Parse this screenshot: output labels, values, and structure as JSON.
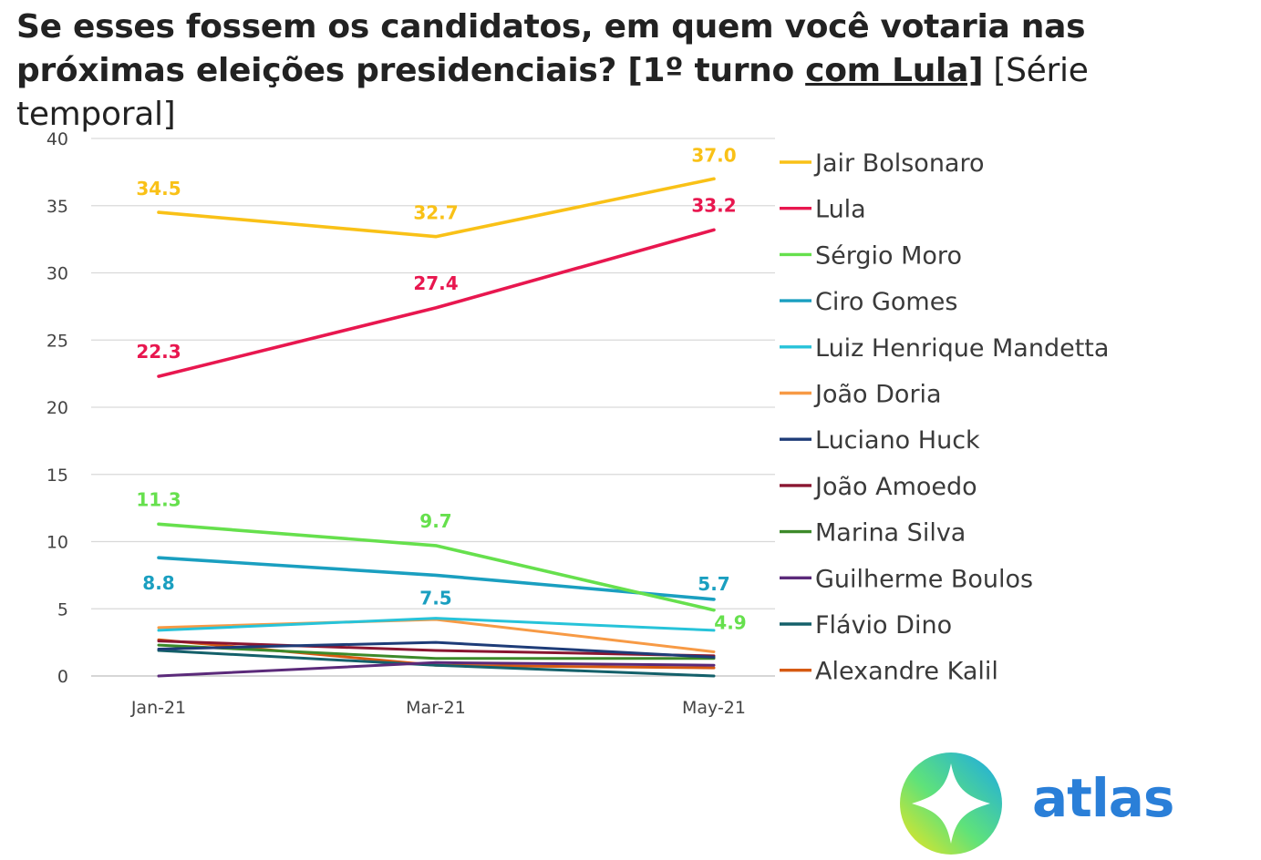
{
  "title": {
    "part1": "Se esses fossem os candidatos, em quem você votaria nas próximas eleições presidenciais? [1º turno ",
    "part2": "com Lula]",
    "part3": " [Série temporal]"
  },
  "logo": {
    "text": "atlas",
    "icon": "atlas-compass-logo-icon"
  },
  "chart_data": {
    "type": "line",
    "x": [
      "Jan-21",
      "Mar-21",
      "May-21"
    ],
    "ylim": [
      0,
      40
    ],
    "yticks": [
      0,
      5,
      10,
      15,
      20,
      25,
      30,
      35,
      40
    ],
    "grid": true,
    "legend_position": "right",
    "series": [
      {
        "name": "Jair Bolsonaro",
        "color": "#f9c117",
        "values": [
          34.5,
          32.7,
          37.0
        ],
        "labels": [
          "34.5",
          "32.7",
          "37.0"
        ]
      },
      {
        "name": "Lula",
        "color": "#e8174f",
        "values": [
          22.3,
          27.4,
          33.2
        ],
        "labels": [
          "22.3",
          "27.4",
          "33.2"
        ]
      },
      {
        "name": "Sérgio Moro",
        "color": "#66e04d",
        "values": [
          11.3,
          9.7,
          4.9
        ],
        "labels": [
          "11.3",
          "9.7",
          "4.9"
        ]
      },
      {
        "name": "Ciro Gomes",
        "color": "#1a9fc0",
        "values": [
          8.8,
          7.5,
          5.7
        ],
        "labels": [
          "8.8",
          "7.5",
          "5.7"
        ]
      },
      {
        "name": "Luiz Henrique Mandetta",
        "color": "#27c3d9",
        "values": [
          3.4,
          4.3,
          3.4
        ],
        "labels": []
      },
      {
        "name": "João Doria",
        "color": "#f79a45",
        "values": [
          3.6,
          4.2,
          1.8
        ],
        "labels": []
      },
      {
        "name": "Luciano Huck",
        "color": "#1e3c78",
        "values": [
          2.0,
          2.5,
          1.4
        ],
        "labels": []
      },
      {
        "name": "João Amoedo",
        "color": "#8a1631",
        "values": [
          2.6,
          1.9,
          1.5
        ],
        "labels": []
      },
      {
        "name": "Marina Silva",
        "color": "#3d8a2a",
        "values": [
          2.3,
          1.3,
          1.3
        ],
        "labels": []
      },
      {
        "name": "Guilherme Boulos",
        "color": "#5b2a7a",
        "values": [
          0.0,
          1.0,
          0.8
        ],
        "labels": []
      },
      {
        "name": "Flávio Dino",
        "color": "#14606a",
        "values": [
          1.9,
          0.8,
          0.0
        ],
        "labels": []
      },
      {
        "name": "Alexandre Kalil",
        "color": "#d65a12",
        "values": [
          2.7,
          0.8,
          0.6
        ],
        "labels": []
      }
    ]
  }
}
